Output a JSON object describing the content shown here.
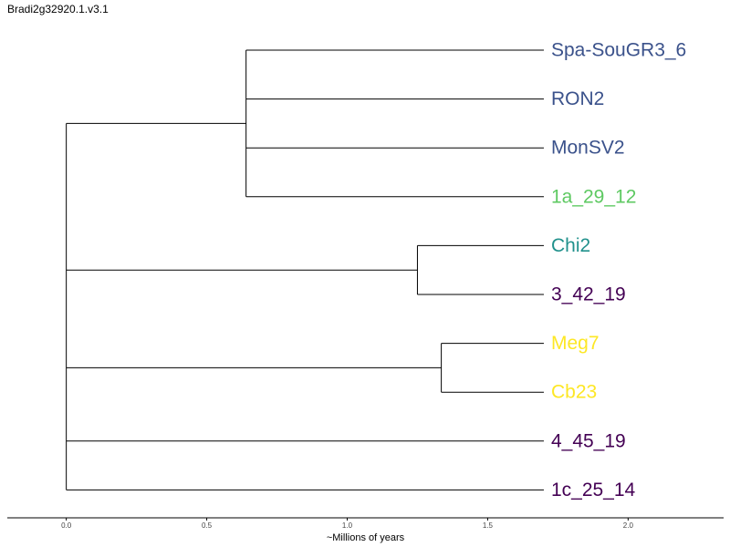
{
  "title": "Bradi2g32920.1.v3.1",
  "chart_data": {
    "type": "dendrogram",
    "xlabel": "~Millions of years",
    "xlim": [
      -0.21,
      2.34
    ],
    "xticks": [
      "0.0",
      "0.5",
      "1.0",
      "1.5",
      "2.0"
    ],
    "xtick_values": [
      0.0,
      0.5,
      1.0,
      1.5,
      2.0
    ],
    "tree": {
      "height": 0.0,
      "children": [
        {
          "height": 0.64,
          "children": [
            {
              "leaf": "Spa-SouGR3_6",
              "color": "#3b528b"
            },
            {
              "leaf": "RON2",
              "color": "#3b528b"
            },
            {
              "leaf": "MonSV2",
              "color": "#3b528b"
            },
            {
              "leaf": "1a_29_12",
              "color": "#5ec962"
            }
          ]
        },
        {
          "height": 1.25,
          "children": [
            {
              "leaf": "Chi2",
              "color": "#21918c"
            },
            {
              "leaf": "3_42_19",
              "color": "#440154"
            }
          ]
        },
        {
          "height": 1.335,
          "children": [
            {
              "leaf": "Meg7",
              "color": "#fde725"
            },
            {
              "leaf": "Cb23",
              "color": "#fde725"
            }
          ]
        },
        {
          "leaf": "4_45_19",
          "color": "#440154"
        },
        {
          "leaf": "1c_25_14",
          "color": "#440154"
        }
      ]
    },
    "leaf_tip": 1.7
  }
}
